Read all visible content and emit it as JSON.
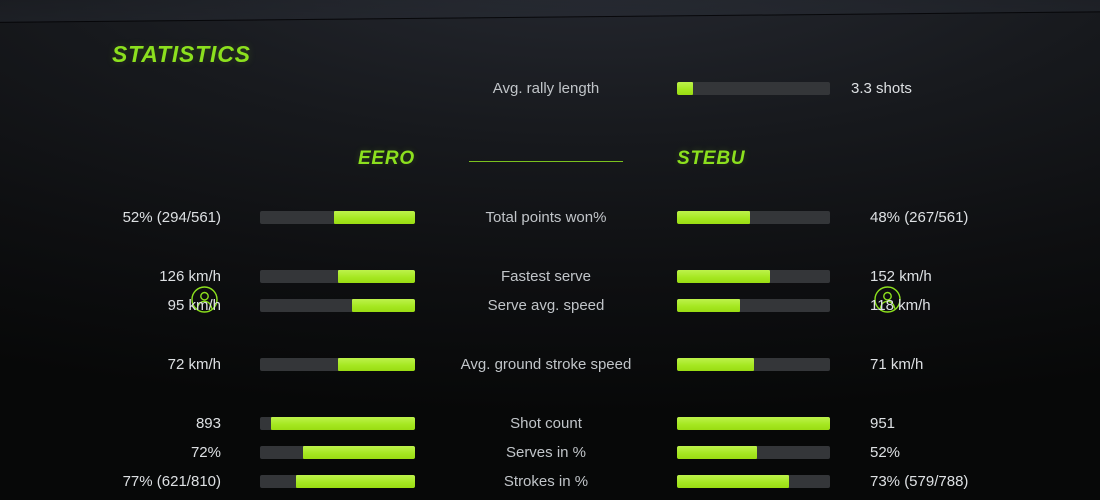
{
  "title": "STATISTICS",
  "colors": {
    "accent": "#8ce01e",
    "bar_fill": "#a6e822",
    "bar_track": "#343639",
    "label_text": "#c1c5c9",
    "value_text": "#dde0e3"
  },
  "players": {
    "left": {
      "name": "EERO"
    },
    "right": {
      "name": "STEBU"
    }
  },
  "rally": {
    "label": "Avg. rally length",
    "value": "3.3 shots",
    "fill": 0.105
  },
  "rows": [
    {
      "label": "Total points won%",
      "left": "52% (294/561)",
      "right": "48% (267/561)",
      "left_fill": 0.52,
      "right_fill": 0.48
    },
    {
      "label": "Fastest serve",
      "left": "126 km/h",
      "right": "152 km/h",
      "left_fill": 0.5,
      "right_fill": 0.61
    },
    {
      "label": "Serve avg. speed",
      "left": "95 km/h",
      "right": "118 km/h",
      "left_fill": 0.405,
      "right_fill": 0.41
    },
    {
      "label": "Avg. ground stroke speed",
      "left": "72 km/h",
      "right": "71 km/h",
      "left_fill": 0.5,
      "right_fill": 0.5
    },
    {
      "label": "Shot count",
      "left": "893",
      "right": "951",
      "left_fill": 0.93,
      "right_fill": 1.0
    },
    {
      "label": "Serves in %",
      "left": "72%",
      "right": "52%",
      "left_fill": 0.72,
      "right_fill": 0.52
    },
    {
      "label": "Strokes in %",
      "left": "77% (621/810)",
      "right": "73% (579/788)",
      "left_fill": 0.77,
      "right_fill": 0.73
    }
  ],
  "chart_data": {
    "type": "bar",
    "title": "STATISTICS",
    "legend": [
      "EERO",
      "STEBU"
    ],
    "legend_position": "top",
    "shared_stats": [
      {
        "label": "Avg. rally length",
        "value": 3.3,
        "unit": "shots",
        "display": "3.3 shots"
      }
    ],
    "categories": [
      "Total points won%",
      "Fastest serve",
      "Serve avg. speed",
      "Avg. ground stroke speed",
      "Shot count",
      "Serves in %",
      "Strokes in %"
    ],
    "series": [
      {
        "name": "EERO",
        "values": [
          52,
          126,
          95,
          72,
          893,
          72,
          77
        ],
        "display": [
          "52% (294/561)",
          "126 km/h",
          "95 km/h",
          "72 km/h",
          "893",
          "72%",
          "77% (621/810)"
        ]
      },
      {
        "name": "STEBU",
        "values": [
          48,
          152,
          118,
          71,
          951,
          52,
          73
        ],
        "display": [
          "48% (267/561)",
          "152 km/h",
          "118 km/h",
          "71 km/h",
          "951",
          "52%",
          "73% (579/788)"
        ]
      }
    ]
  }
}
